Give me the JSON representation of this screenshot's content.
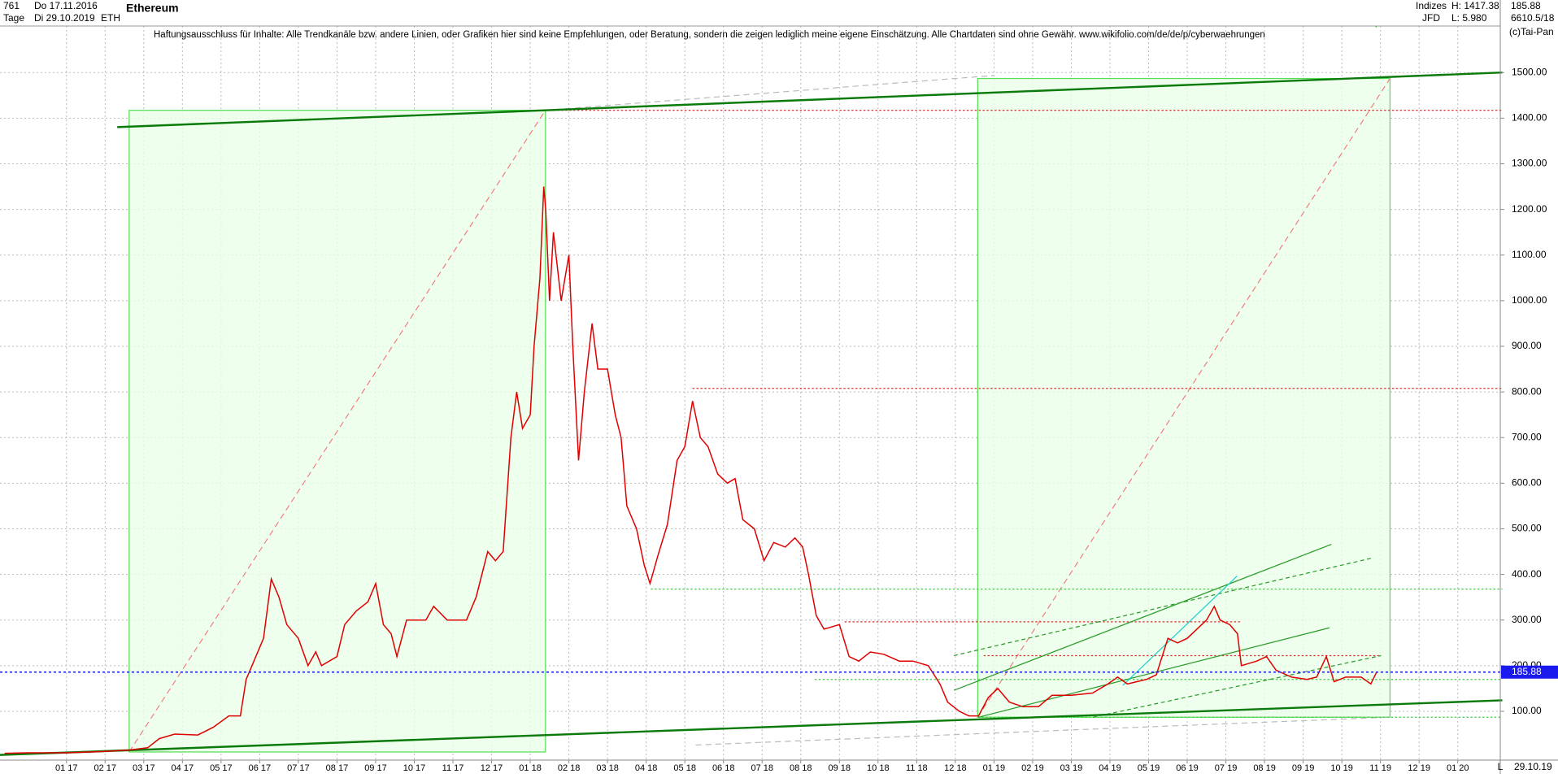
{
  "header": {
    "count": "761",
    "start_date": "Do 17.11.2016",
    "period": "Tage",
    "end_date": "Di 29.10.2019",
    "symbol": "ETH",
    "group": "Indizes",
    "broker": "JFD",
    "high": "H: 1417.38",
    "low": "L: 5.980",
    "close": "185.88",
    "volume": "6610.5/18",
    "copyright": "(c)Tai-Pan",
    "scale_mode": "L",
    "last_date": "29.10.19"
  },
  "disclaimer": "Haftungsausschluss für Inhalte: Alle Trendkanäle bzw. andere Linien, oder Grafiken hier sind keine Empfehlungen, oder Beratung, sondern die zeigen lediglich meine eigene Einschätzung. Alle Chartdaten sind ohne Gewähr.  www.wikifolio.com/de/de/p/cyberwaehrungen",
  "chart_data": {
    "type": "line",
    "title": "Ethereum",
    "color": "#e00000",
    "grid": true,
    "x": [
      -1.6,
      -1.0,
      0.0,
      1.0,
      1.6,
      2.1,
      2.4,
      2.8,
      3.4,
      3.8,
      4.2,
      4.5,
      4.65,
      4.8,
      5.1,
      5.3,
      5.5,
      5.7,
      6.0,
      6.25,
      6.45,
      6.6,
      7.0,
      7.2,
      7.5,
      7.8,
      8.0,
      8.2,
      8.4,
      8.55,
      8.8,
      9.3,
      9.5,
      9.85,
      10.35,
      10.6,
      10.9,
      11.1,
      11.3,
      11.5,
      11.65,
      11.8,
      12.0,
      12.1,
      12.25,
      12.35,
      12.4,
      12.5,
      12.6,
      12.8,
      13.0,
      13.1,
      13.25,
      13.4,
      13.6,
      13.75,
      14.0,
      14.2,
      14.35,
      14.5,
      14.75,
      14.95,
      15.1,
      15.3,
      15.55,
      15.8,
      16.0,
      16.2,
      16.4,
      16.6,
      16.85,
      17.1,
      17.3,
      17.5,
      17.8,
      18.05,
      18.3,
      18.6,
      18.85,
      19.05,
      19.2,
      19.4,
      19.6,
      20.0,
      20.25,
      20.5,
      20.8,
      21.15,
      21.55,
      21.9,
      22.3,
      22.6,
      22.8,
      23.1,
      23.35,
      23.6,
      23.85,
      24.1,
      24.4,
      24.75,
      25.15,
      25.5,
      26.0,
      26.55,
      26.95,
      27.2,
      27.45,
      27.7,
      27.95,
      28.2,
      28.5,
      28.75,
      29.0,
      29.25,
      29.5,
      29.7,
      29.85,
      30.1,
      30.3,
      30.4,
      30.8,
      31.05,
      31.3,
      31.7,
      32.1,
      32.35,
      32.6,
      32.8,
      33.1,
      33.5,
      33.75,
      33.9
    ],
    "values": [
      8,
      9,
      9,
      12,
      15,
      20,
      40,
      50,
      48,
      65,
      90,
      90,
      170,
      200,
      260,
      390,
      350,
      290,
      260,
      200,
      230,
      200,
      220,
      290,
      320,
      340,
      380,
      290,
      270,
      220,
      300,
      300,
      330,
      300,
      300,
      350,
      450,
      430,
      450,
      700,
      800,
      720,
      750,
      900,
      1050,
      1250,
      1200,
      1000,
      1150,
      1000,
      1100,
      900,
      650,
      800,
      950,
      850,
      850,
      750,
      700,
      550,
      500,
      420,
      380,
      440,
      510,
      650,
      680,
      780,
      700,
      680,
      620,
      600,
      610,
      520,
      500,
      430,
      470,
      460,
      480,
      460,
      400,
      310,
      280,
      290,
      220,
      210,
      230,
      225,
      210,
      210,
      200,
      160,
      120,
      100,
      90,
      90,
      130,
      150,
      120,
      110,
      110,
      135,
      135,
      140,
      160,
      175,
      160,
      165,
      170,
      180,
      260,
      250,
      260,
      280,
      300,
      330,
      300,
      290,
      270,
      200,
      210,
      220,
      190,
      175,
      170,
      175,
      220,
      165,
      175,
      175,
      160,
      185.88
    ],
    "xlim": [
      -1.72,
      37.1
    ],
    "xticks": [
      {
        "value": 0,
        "label": "01 17"
      },
      {
        "value": 1,
        "label": "02 17"
      },
      {
        "value": 2,
        "label": "03 17"
      },
      {
        "value": 3,
        "label": "04 17"
      },
      {
        "value": 4,
        "label": "05 17"
      },
      {
        "value": 5,
        "label": "06 17"
      },
      {
        "value": 6,
        "label": "07 17"
      },
      {
        "value": 7,
        "label": "08 17"
      },
      {
        "value": 8,
        "label": "09 17"
      },
      {
        "value": 9,
        "label": "10 17"
      },
      {
        "value": 10,
        "label": "11 17"
      },
      {
        "value": 11,
        "label": "12 17"
      },
      {
        "value": 12,
        "label": "01 18"
      },
      {
        "value": 13,
        "label": "02 18"
      },
      {
        "value": 14,
        "label": "03 18"
      },
      {
        "value": 15,
        "label": "04 18"
      },
      {
        "value": 16,
        "label": "05 18"
      },
      {
        "value": 17,
        "label": "06 18"
      },
      {
        "value": 18,
        "label": "07 18"
      },
      {
        "value": 19,
        "label": "08 18"
      },
      {
        "value": 20,
        "label": "09 18"
      },
      {
        "value": 21,
        "label": "10 18"
      },
      {
        "value": 22,
        "label": "11 18"
      },
      {
        "value": 23,
        "label": "12 18"
      },
      {
        "value": 24,
        "label": "01 19"
      },
      {
        "value": 25,
        "label": "02 19"
      },
      {
        "value": 26,
        "label": "03 19"
      },
      {
        "value": 27,
        "label": "04 19"
      },
      {
        "value": 28,
        "label": "05 19"
      },
      {
        "value": 29,
        "label": "06 19"
      },
      {
        "value": 30,
        "label": "07 19"
      },
      {
        "value": 31,
        "label": "08 19"
      },
      {
        "value": 32,
        "label": "09 19"
      },
      {
        "value": 33,
        "label": "10 19"
      },
      {
        "value": 34,
        "label": "11 19"
      },
      {
        "value": 35,
        "label": "12 19"
      },
      {
        "value": 36,
        "label": "01 20"
      }
    ],
    "ylim": [
      -7,
      1602
    ],
    "yticks": [
      {
        "value": 100,
        "label": "100.00"
      },
      {
        "value": 200,
        "label": "200.00"
      },
      {
        "value": 300,
        "label": "300.00"
      },
      {
        "value": 400,
        "label": "400.00"
      },
      {
        "value": 500,
        "label": "500.00"
      },
      {
        "value": 600,
        "label": "600.00"
      },
      {
        "value": 700,
        "label": "700.00"
      },
      {
        "value": 800,
        "label": "800.00"
      },
      {
        "value": 900,
        "label": "900.00"
      },
      {
        "value": 1000,
        "label": "1000.00"
      },
      {
        "value": 1100,
        "label": "1100.00"
      },
      {
        "value": 1200,
        "label": "1200.00"
      },
      {
        "value": 1300,
        "label": "1300.00"
      },
      {
        "value": 1400,
        "label": "1400.00"
      },
      {
        "value": 1500,
        "label": "1500.00"
      }
    ]
  }
}
